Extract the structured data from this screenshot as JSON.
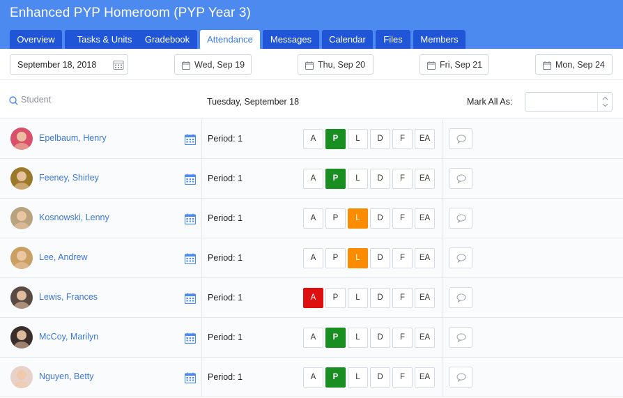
{
  "header": {
    "title": "Enhanced PYP Homeroom (PYP Year 3)",
    "tabs": [
      {
        "label": "Overview",
        "active": false
      },
      {
        "label": "Tasks & Units",
        "active": false
      },
      {
        "label": "Gradebook",
        "active": false
      },
      {
        "label": "Attendance",
        "active": true
      },
      {
        "label": "Messages",
        "active": false
      },
      {
        "label": "Calendar",
        "active": false
      },
      {
        "label": "Files",
        "active": false
      },
      {
        "label": "Members",
        "active": false
      }
    ]
  },
  "date_bar": {
    "date_value": "September 18, 2018",
    "days": [
      {
        "label": "Wed, Sep 19"
      },
      {
        "label": "Thu, Sep 20"
      },
      {
        "label": "Fri, Sep 21"
      },
      {
        "label": "Mon, Sep 24"
      }
    ]
  },
  "filter_bar": {
    "student_placeholder": "Student",
    "selected_date": "Tuesday, September 18",
    "mark_all_label": "Mark All As:",
    "mark_all_value": ""
  },
  "attendance_codes": [
    "A",
    "P",
    "L",
    "D",
    "F",
    "EA"
  ],
  "colors": {
    "header_bg": "#4d8af0",
    "tab_bg": "#1f55d6",
    "present": "#1a8f21",
    "late": "#fb8c00",
    "absent": "#dd0f0f",
    "link": "#3b76d8"
  },
  "students": [
    {
      "name": "Epelbaum, Henry",
      "period": "Period: 1",
      "status": "P",
      "avatar_color": "#d8506a"
    },
    {
      "name": "Feeney, Shirley",
      "period": "Period: 1",
      "status": "P",
      "avatar_color": "#9a7a2a"
    },
    {
      "name": "Kosnowski, Lenny",
      "period": "Period: 1",
      "status": "L",
      "avatar_color": "#b9a37e"
    },
    {
      "name": "Lee, Andrew",
      "period": "Period: 1",
      "status": "L",
      "avatar_color": "#c8a064"
    },
    {
      "name": "Lewis, Frances",
      "period": "Period: 1",
      "status": "A",
      "avatar_color": "#5a4a44"
    },
    {
      "name": "McCoy, Marilyn",
      "period": "Period: 1",
      "status": "P",
      "avatar_color": "#3a2e2a"
    },
    {
      "name": "Nguyen, Betty",
      "period": "Period: 1",
      "status": "P",
      "avatar_color": "#e8d2c8"
    }
  ]
}
